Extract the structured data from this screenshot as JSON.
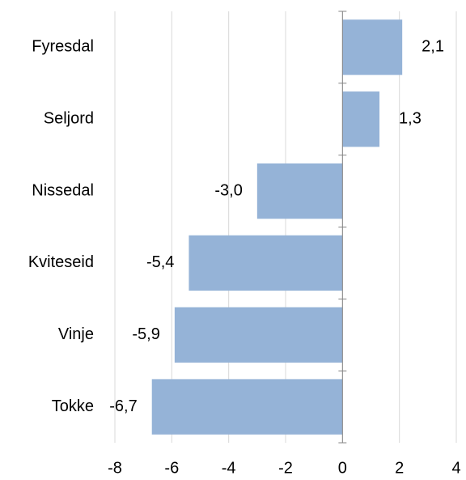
{
  "chart_data": {
    "type": "hbar",
    "categories": [
      "Fyresdal",
      "Seljord",
      "Nissedal",
      "Kviteseid",
      "Vinje",
      "Tokke"
    ],
    "values": [
      2.1,
      1.3,
      -3.0,
      -5.4,
      -5.9,
      -6.7
    ],
    "value_labels": [
      "2,1",
      "1,3",
      "-3,0",
      "-5,4",
      "-5,9",
      "-6,7"
    ],
    "color": "#95b3d7",
    "xlim": [
      -8,
      4
    ],
    "xticks": [
      -8,
      -6,
      -4,
      -2,
      0,
      2,
      4
    ],
    "grid": true
  }
}
